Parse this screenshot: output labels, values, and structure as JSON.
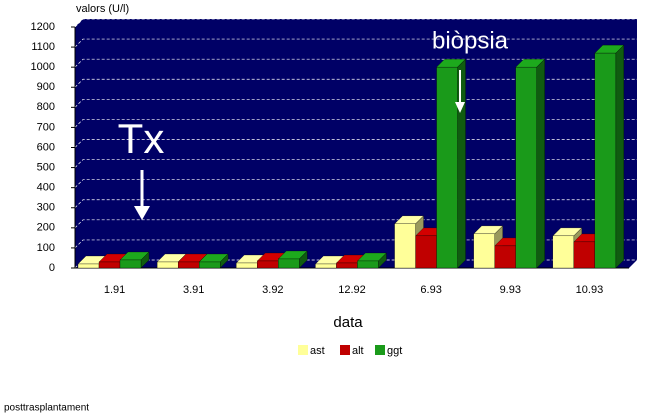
{
  "chart_data": {
    "type": "bar3d",
    "y_label": "valors (U/l)",
    "x_label": "data",
    "categories": [
      "1.91",
      "3.91",
      "3.92",
      "12.92",
      "6.93",
      "9.93",
      "10.93"
    ],
    "series": [
      {
        "name": "ast",
        "color": "#ffff99",
        "values": [
          20,
          30,
          25,
          20,
          220,
          170,
          160
        ]
      },
      {
        "name": "alt",
        "color": "#c00000",
        "values": [
          30,
          30,
          35,
          25,
          160,
          110,
          130
        ]
      },
      {
        "name": "ggt",
        "color": "#1a9a1a",
        "values": [
          40,
          30,
          45,
          35,
          1000,
          1000,
          1070
        ]
      }
    ],
    "ylim": [
      0,
      1200
    ],
    "yticks": [
      0,
      100,
      200,
      300,
      400,
      500,
      600,
      700,
      800,
      900,
      1000,
      1100,
      1200
    ],
    "grid": true,
    "background": "#000066",
    "annotations": [
      "Tx",
      "biòpsia"
    ],
    "footnote": "posttrasplantament"
  }
}
